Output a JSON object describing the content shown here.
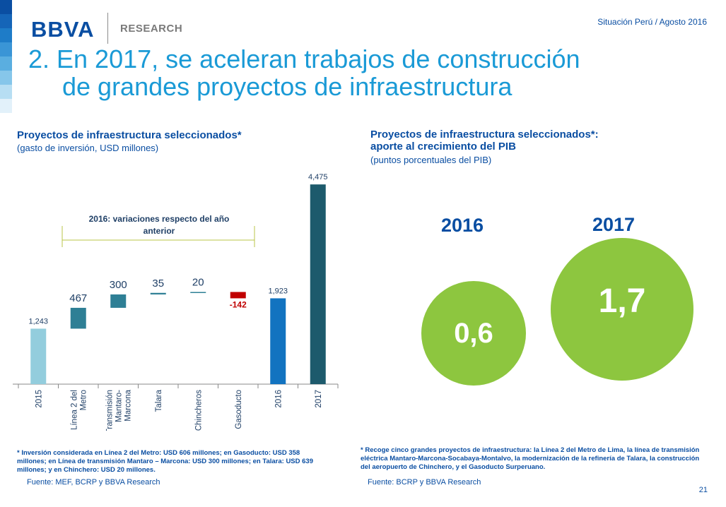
{
  "header": {
    "logo": "BBVA",
    "logo_sub": "RESEARCH",
    "right_text": "Situación Perú / Agosto 2016"
  },
  "title": {
    "line1": "2. En 2017, se aceleran trabajos de construcción",
    "line2": "de grandes proyectos de infraestructura"
  },
  "left_panel": {
    "title": "Proyectos de infraestructura seleccionados*",
    "subtitle": "(gasto de inversión, USD millones)",
    "footnote": "* Inversión considerada en Línea 2 del Metro: USD 606 millones; en Gasoducto: USD 358 millones; en Línea de transmisión Mantaro – Marcona: USD 300 millones; en Talara: USD 639 millones; y en Chinchero: USD 20 millones.",
    "source": "Fuente: MEF, BCRP y BBVA Research"
  },
  "right_panel": {
    "title_line1": "Proyectos de infraestructura seleccionados*:",
    "title_line2": "aporte al crecimiento del PIB",
    "subtitle": "(puntos porcentuales del PIB)",
    "footnote": "* Recoge cinco grandes proyectos de infraestructura: la Línea 2 del Metro de Lima, la línea de transmisión eléctrica Mantaro-Marcona-Socabaya-Montalvo, la modernización de la refinería de Talara, la construcción del aeropuerto de Chinchero, y el Gasoducto Surperuano.",
    "source": "Fuente:  BCRP y BBVA Research"
  },
  "chart_data": [
    {
      "type": "bar",
      "subtype": "waterfall",
      "title": "Proyectos de infraestructura seleccionados*",
      "subtitle": "(gasto de inversión, USD millones)",
      "categories": [
        "2015",
        "Línea 2 del Metro",
        "Transmisión Mantaro-Marcona",
        "Talara",
        "Chincheros",
        "Gasoducto",
        "2016",
        "2017"
      ],
      "category_lines": [
        [
          "2015"
        ],
        [
          "Línea 2 del",
          "Metro"
        ],
        [
          "Transmisión",
          "Mantaro-",
          "Marcona"
        ],
        [
          "Talara"
        ],
        [
          "Chincheros"
        ],
        [
          "Gasoducto"
        ],
        [
          "2016"
        ],
        [
          "2017"
        ]
      ],
      "values": [
        1243,
        467,
        300,
        35,
        20,
        -142,
        1923,
        4475
      ],
      "data_labels": [
        "1,243",
        "467",
        "300",
        "35",
        "20",
        "-142",
        "1,923",
        "4,475"
      ],
      "kinds": [
        "total",
        "delta",
        "delta",
        "delta",
        "delta",
        "delta",
        "total",
        "total"
      ],
      "colors": [
        "#93cddd",
        "#2e7f95",
        "#2e7f95",
        "#2e7f95",
        "#2e7f95",
        "#c00000",
        "#1273c0",
        "#1d5a6c"
      ],
      "bracket_label_lines": [
        "2016: variaciones respecto del año",
        "anterior"
      ],
      "ylim": [
        0,
        4700
      ],
      "xlabel": "",
      "ylabel": ""
    },
    {
      "type": "bubble",
      "title": "Proyectos de infraestructura seleccionados*: aporte al crecimiento del PIB",
      "subtitle": "(puntos porcentuales del PIB)",
      "categories": [
        "2016",
        "2017"
      ],
      "values": [
        0.6,
        1.7
      ],
      "data_labels": [
        "0,6",
        "1,7"
      ],
      "color": "#8dc63f"
    }
  ],
  "page_number": "21",
  "colors": {
    "brand_blue": "#0a4ea2",
    "title_blue": "#1a9ad6",
    "bubble_green": "#8dc63f",
    "bracket": "#b8c44a",
    "stripes": [
      "#0a4ea2",
      "#1565b8",
      "#1e7cc8",
      "#3a95d6",
      "#5aaee0",
      "#86c6ea",
      "#b7def3",
      "#e2f1fa"
    ]
  }
}
